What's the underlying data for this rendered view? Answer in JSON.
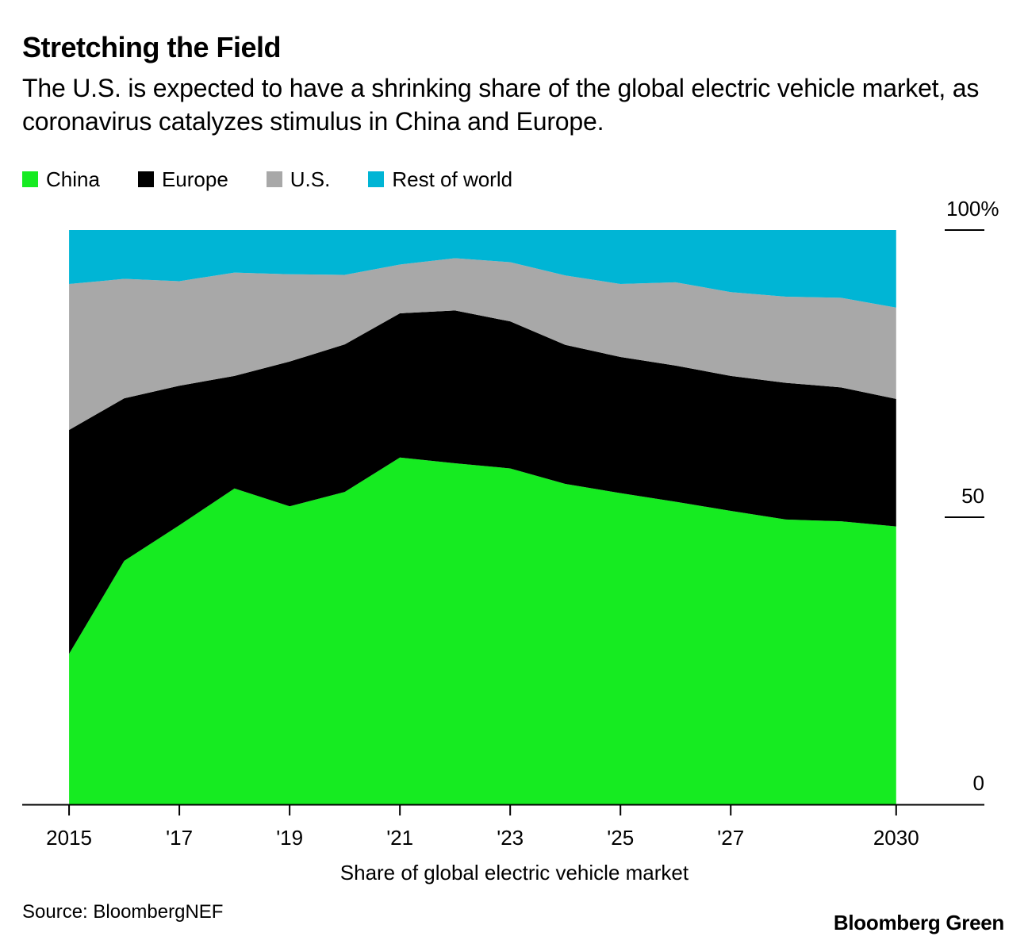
{
  "header": {
    "title": "Stretching the Field",
    "subtitle": "The U.S. is expected to have a shrinking share of the global electric vehicle market, as coronavirus catalyzes stimulus in China and Europe."
  },
  "legend": [
    {
      "label": "China",
      "color": "#16eb21"
    },
    {
      "label": "Europe",
      "color": "#000000"
    },
    {
      "label": "U.S.",
      "color": "#a8a8a8"
    },
    {
      "label": "Rest of world",
      "color": "#00b5d5"
    }
  ],
  "footer": {
    "source": "Source: BloombergNEF",
    "brand": "Bloomberg Green"
  },
  "chart_data": {
    "type": "area",
    "stacked": true,
    "title": "Stretching the Field",
    "xlabel": "Share of global electric vehicle market",
    "ylabel": "",
    "x": [
      2015,
      2016,
      2017,
      2018,
      2019,
      2020,
      2021,
      2022,
      2023,
      2024,
      2025,
      2026,
      2027,
      2028,
      2029,
      2030
    ],
    "x_ticks": [
      {
        "value": 2015,
        "label": "2015"
      },
      {
        "value": 2017,
        "label": "'17"
      },
      {
        "value": 2019,
        "label": "'19"
      },
      {
        "value": 2021,
        "label": "'21"
      },
      {
        "value": 2023,
        "label": "'23"
      },
      {
        "value": 2025,
        "label": "'25"
      },
      {
        "value": 2027,
        "label": "'27"
      },
      {
        "value": 2030,
        "label": "2030"
      }
    ],
    "xlim": [
      2014.15,
      2031.6
    ],
    "y_ticks": [
      {
        "value": 100,
        "label": "100%"
      },
      {
        "value": 50,
        "label": "50"
      },
      {
        "value": 0,
        "label": "0"
      }
    ],
    "ylim": [
      0,
      100
    ],
    "y_axis_position": "right",
    "series": [
      {
        "name": "China",
        "color": "#16eb21",
        "values": [
          26.2,
          42.4,
          48.6,
          55.0,
          51.9,
          54.4,
          60.4,
          59.4,
          58.5,
          55.8,
          54.2,
          52.7,
          51.1,
          49.6,
          49.3,
          48.4
        ]
      },
      {
        "name": "Europe",
        "color": "#000000",
        "values": [
          39.0,
          28.3,
          24.3,
          19.6,
          25.2,
          25.7,
          25.1,
          26.6,
          25.6,
          24.2,
          23.7,
          23.7,
          23.5,
          23.8,
          23.3,
          22.2
        ]
      },
      {
        "name": "U.S.",
        "color": "#a8a8a8",
        "values": [
          25.4,
          20.8,
          18.2,
          18.0,
          15.2,
          12.1,
          8.5,
          9.1,
          10.3,
          12.1,
          12.7,
          14.5,
          14.6,
          15.0,
          15.6,
          15.9
        ]
      },
      {
        "name": "Rest of world",
        "color": "#00b5d5",
        "values": [
          9.4,
          8.5,
          8.9,
          7.4,
          7.7,
          7.8,
          6.0,
          4.9,
          5.6,
          7.9,
          9.4,
          9.1,
          10.8,
          11.6,
          11.8,
          13.5
        ]
      }
    ]
  }
}
